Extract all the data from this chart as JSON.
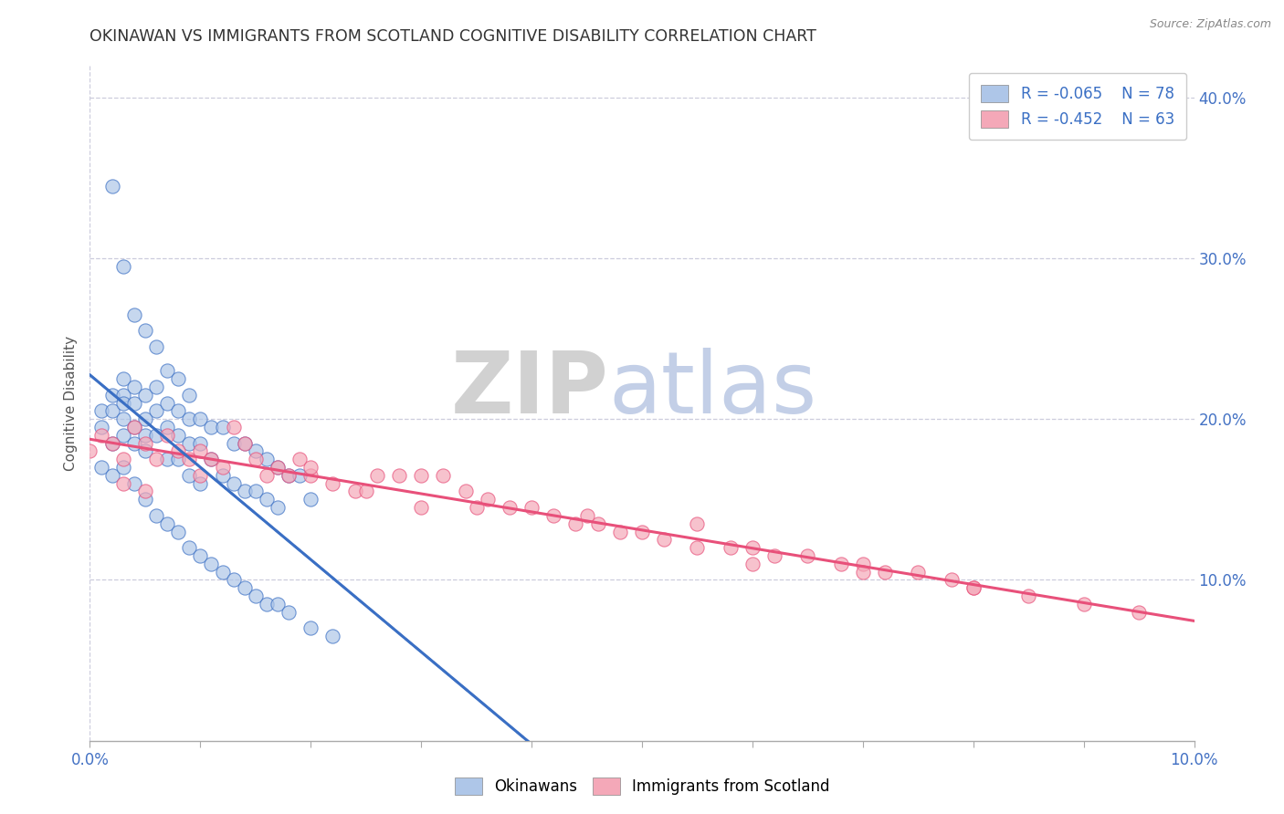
{
  "title": "OKINAWAN VS IMMIGRANTS FROM SCOTLAND COGNITIVE DISABILITY CORRELATION CHART",
  "source": "Source: ZipAtlas.com",
  "ylabel": "Cognitive Disability",
  "xlim": [
    0.0,
    0.1
  ],
  "ylim": [
    0.0,
    0.42
  ],
  "xticks": [
    0.0,
    0.01,
    0.02,
    0.03,
    0.04,
    0.05,
    0.06,
    0.07,
    0.08,
    0.09,
    0.1
  ],
  "xticklabels": [
    "0.0%",
    "",
    "",
    "",
    "",
    "",
    "",
    "",
    "",
    "",
    "10.0%"
  ],
  "yticks_right": [
    0.1,
    0.2,
    0.3,
    0.4
  ],
  "yticklabels_right": [
    "10.0%",
    "20.0%",
    "30.0%",
    "40.0%"
  ],
  "legend_r1": "R = -0.065",
  "legend_n1": "N = 78",
  "legend_r2": "R = -0.452",
  "legend_n2": "N = 63",
  "color_blue": "#aec6e8",
  "color_pink": "#f4a8b8",
  "color_blue_line": "#3a6fc4",
  "color_pink_line": "#e8507a",
  "watermark_zip": "ZIP",
  "watermark_atlas": "atlas",
  "background_color": "#ffffff",
  "grid_color": "#ccccdd",
  "okinawan_x": [
    0.001,
    0.001,
    0.002,
    0.002,
    0.002,
    0.003,
    0.003,
    0.003,
    0.003,
    0.003,
    0.004,
    0.004,
    0.004,
    0.004,
    0.005,
    0.005,
    0.005,
    0.005,
    0.006,
    0.006,
    0.006,
    0.007,
    0.007,
    0.007,
    0.008,
    0.008,
    0.008,
    0.009,
    0.009,
    0.009,
    0.01,
    0.01,
    0.01,
    0.011,
    0.011,
    0.012,
    0.012,
    0.013,
    0.013,
    0.014,
    0.014,
    0.015,
    0.015,
    0.016,
    0.016,
    0.017,
    0.017,
    0.018,
    0.019,
    0.02,
    0.001,
    0.002,
    0.003,
    0.004,
    0.005,
    0.006,
    0.007,
    0.008,
    0.009,
    0.01,
    0.011,
    0.012,
    0.013,
    0.014,
    0.015,
    0.016,
    0.017,
    0.018,
    0.02,
    0.022,
    0.002,
    0.003,
    0.004,
    0.005,
    0.006,
    0.007,
    0.008,
    0.009
  ],
  "okinawan_y": [
    0.205,
    0.195,
    0.215,
    0.205,
    0.185,
    0.225,
    0.215,
    0.21,
    0.2,
    0.19,
    0.22,
    0.21,
    0.195,
    0.185,
    0.215,
    0.2,
    0.19,
    0.18,
    0.22,
    0.205,
    0.19,
    0.21,
    0.195,
    0.175,
    0.205,
    0.19,
    0.175,
    0.2,
    0.185,
    0.165,
    0.2,
    0.185,
    0.16,
    0.195,
    0.175,
    0.195,
    0.165,
    0.185,
    0.16,
    0.185,
    0.155,
    0.18,
    0.155,
    0.175,
    0.15,
    0.17,
    0.145,
    0.165,
    0.165,
    0.15,
    0.17,
    0.165,
    0.17,
    0.16,
    0.15,
    0.14,
    0.135,
    0.13,
    0.12,
    0.115,
    0.11,
    0.105,
    0.1,
    0.095,
    0.09,
    0.085,
    0.085,
    0.08,
    0.07,
    0.065,
    0.345,
    0.295,
    0.265,
    0.255,
    0.245,
    0.23,
    0.225,
    0.215
  ],
  "scotland_x": [
    0.0,
    0.001,
    0.002,
    0.003,
    0.004,
    0.005,
    0.006,
    0.007,
    0.008,
    0.009,
    0.01,
    0.011,
    0.012,
    0.013,
    0.015,
    0.016,
    0.017,
    0.018,
    0.019,
    0.02,
    0.022,
    0.024,
    0.026,
    0.028,
    0.03,
    0.032,
    0.034,
    0.036,
    0.038,
    0.04,
    0.042,
    0.044,
    0.046,
    0.048,
    0.05,
    0.052,
    0.055,
    0.058,
    0.06,
    0.062,
    0.065,
    0.068,
    0.07,
    0.072,
    0.075,
    0.078,
    0.08,
    0.085,
    0.09,
    0.095,
    0.014,
    0.025,
    0.035,
    0.045,
    0.055,
    0.03,
    0.02,
    0.01,
    0.005,
    0.003,
    0.06,
    0.07,
    0.08
  ],
  "scotland_y": [
    0.18,
    0.19,
    0.185,
    0.175,
    0.195,
    0.185,
    0.175,
    0.19,
    0.18,
    0.175,
    0.18,
    0.175,
    0.17,
    0.195,
    0.175,
    0.165,
    0.17,
    0.165,
    0.175,
    0.165,
    0.16,
    0.155,
    0.165,
    0.165,
    0.165,
    0.165,
    0.155,
    0.15,
    0.145,
    0.145,
    0.14,
    0.135,
    0.135,
    0.13,
    0.13,
    0.125,
    0.12,
    0.12,
    0.12,
    0.115,
    0.115,
    0.11,
    0.11,
    0.105,
    0.105,
    0.1,
    0.095,
    0.09,
    0.085,
    0.08,
    0.185,
    0.155,
    0.145,
    0.14,
    0.135,
    0.145,
    0.17,
    0.165,
    0.155,
    0.16,
    0.11,
    0.105,
    0.095
  ]
}
